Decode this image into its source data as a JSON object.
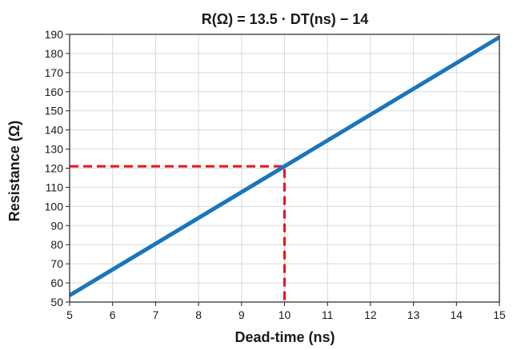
{
  "chart_data": {
    "type": "line",
    "title": "R(Ω) = 13.5 · DT(ns) − 14",
    "xlabel": "Dead-time (ns)",
    "ylabel": "Resistance (Ω)",
    "xlim": [
      5,
      15
    ],
    "ylim": [
      50,
      190
    ],
    "xticks": [
      5,
      6,
      7,
      8,
      9,
      10,
      11,
      12,
      13,
      14,
      15
    ],
    "yticks": [
      50,
      60,
      70,
      80,
      90,
      100,
      110,
      120,
      130,
      140,
      150,
      160,
      170,
      180,
      190
    ],
    "grid": true,
    "series": [
      {
        "color": "#1a75bc",
        "style": "solid",
        "x": [
          5,
          15
        ],
        "y": [
          53.5,
          188.5
        ]
      }
    ],
    "reference_lines": [
      {
        "color": "#e8151c",
        "style": "dashed",
        "x": [
          5,
          10,
          10
        ],
        "y": [
          121,
          121,
          50
        ]
      }
    ]
  }
}
